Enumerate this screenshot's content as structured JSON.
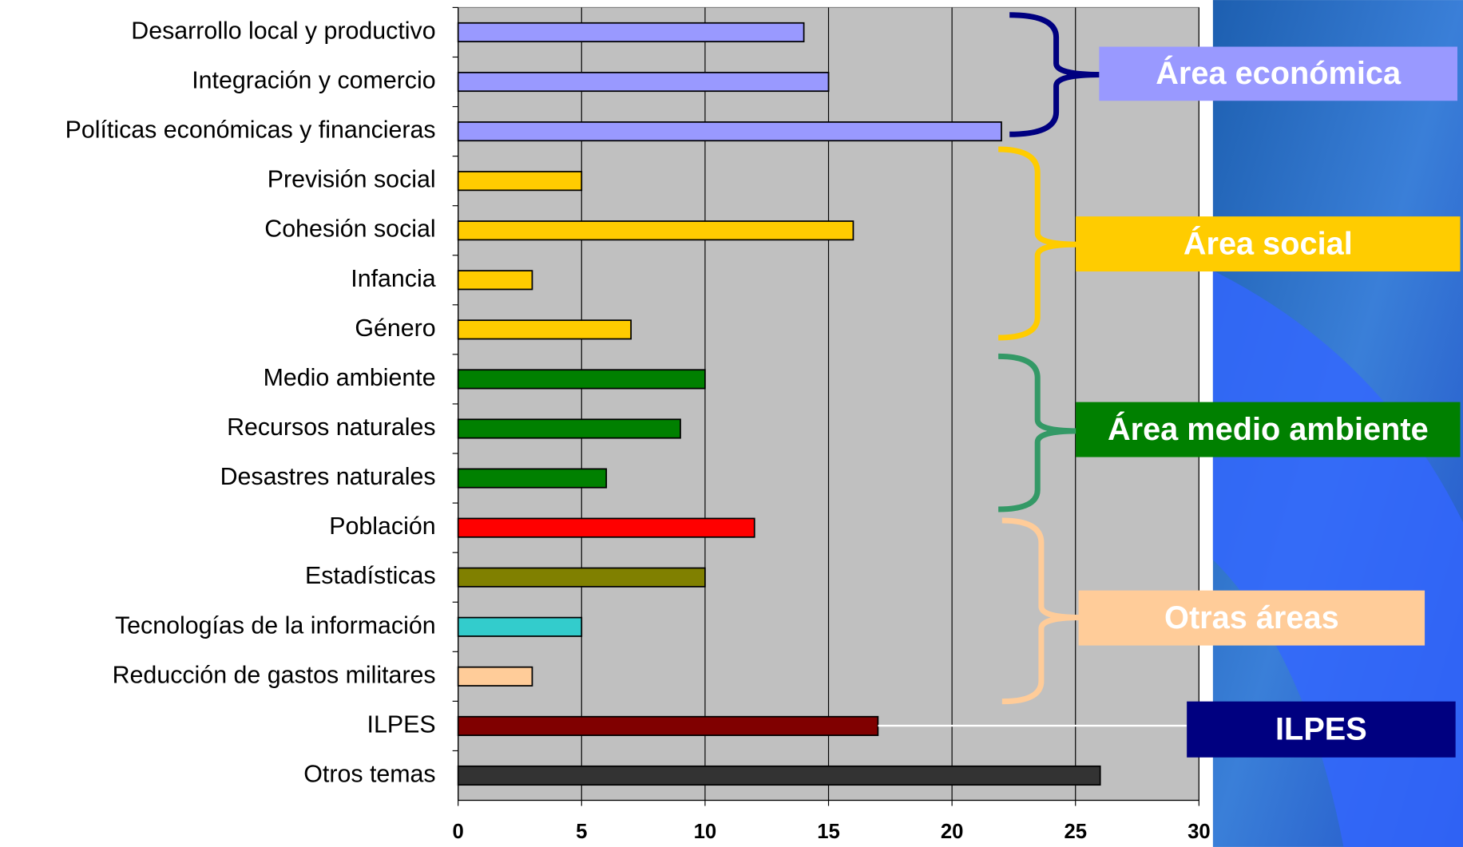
{
  "chart_data": {
    "type": "bar",
    "orientation": "horizontal",
    "categories": [
      "Desarrollo local y productivo",
      "Integración y comercio",
      "Políticas económicas y financieras",
      "Previsión social",
      "Cohesión social",
      "Infancia",
      "Género",
      "Medio ambiente",
      "Recursos naturales",
      "Desastres naturales",
      "Población",
      "Estadísticas",
      "Tecnologías de la información",
      "Reducción de gastos militares",
      "ILPES",
      "Otros temas"
    ],
    "values": [
      14,
      15,
      22,
      5,
      16,
      3,
      7,
      10,
      9,
      6,
      12,
      10,
      5,
      3,
      17,
      26
    ],
    "colors": [
      "#9999ff",
      "#9999ff",
      "#9999ff",
      "#ffcc00",
      "#ffcc00",
      "#ffcc00",
      "#ffcc00",
      "#008000",
      "#008000",
      "#008000",
      "#ff0000",
      "#808000",
      "#33cccc",
      "#ffcc99",
      "#800000",
      "#333333"
    ],
    "xlim": [
      0,
      30
    ],
    "xticks": [
      0,
      5,
      10,
      15,
      20,
      25,
      30
    ],
    "grid": true,
    "annotations": [
      {
        "text": "Área económica",
        "color": "#9999ff"
      },
      {
        "text": "Área social",
        "color": "#ffcc00"
      },
      {
        "text": "Área medio ambiente",
        "color": "#008000"
      },
      {
        "text": "Otras áreas",
        "color": "#ffcc99"
      },
      {
        "text": "ILPES",
        "color": "#000080"
      }
    ]
  }
}
